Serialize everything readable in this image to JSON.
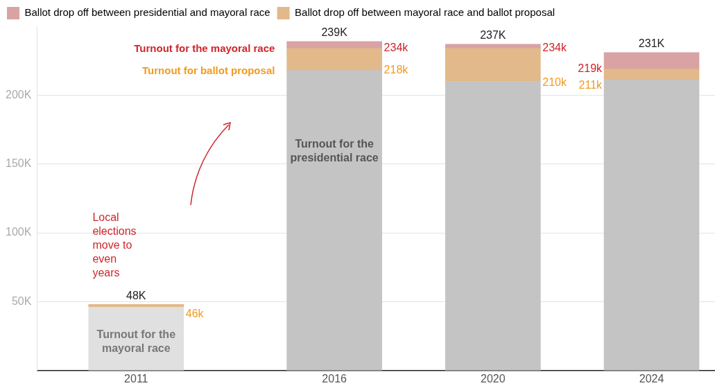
{
  "chart_data": {
    "type": "bar",
    "stacked": true,
    "x": [
      2011,
      2016,
      2020,
      2024
    ],
    "xlim": [
      2008.5,
      2025.6
    ],
    "xticks": [
      2011,
      2016,
      2020,
      2024
    ],
    "ylim": [
      0,
      250
    ],
    "yticks": [
      {
        "value": 0,
        "label": null
      },
      {
        "value": 50,
        "label": "50K"
      },
      {
        "value": 100,
        "label": "100K"
      },
      {
        "value": 150,
        "label": "150K"
      },
      {
        "value": 200,
        "label": "200K"
      }
    ],
    "series": [
      {
        "colors": [
          "#e0e0e0",
          "#c4c4c4",
          "#c4c4c4",
          "#c4c4c4"
        ],
        "values": [
          46,
          218,
          210,
          211
        ]
      },
      {
        "name": "Ballot drop off between mayoral race and ballot proposal",
        "color": "#e2b98a",
        "values": [
          2,
          16,
          24,
          8
        ]
      },
      {
        "name": "Ballot drop off between presidential and mayoral race",
        "color": "#d9a3a3",
        "values": [
          0,
          5,
          3,
          12
        ]
      }
    ],
    "totals": [
      "48K",
      "239K",
      "237K",
      "231K"
    ],
    "annotations": [
      "Turnout for the mayoral race",
      "Turnout for ballot proposal",
      "234k",
      "218k",
      "234k",
      "210k",
      "219k",
      "211k",
      "46k",
      "Turnout for the presidential race",
      "Turnout for the mayoral race",
      "Local elections move to even years"
    ],
    "grid": "y",
    "legend": "top left"
  }
}
